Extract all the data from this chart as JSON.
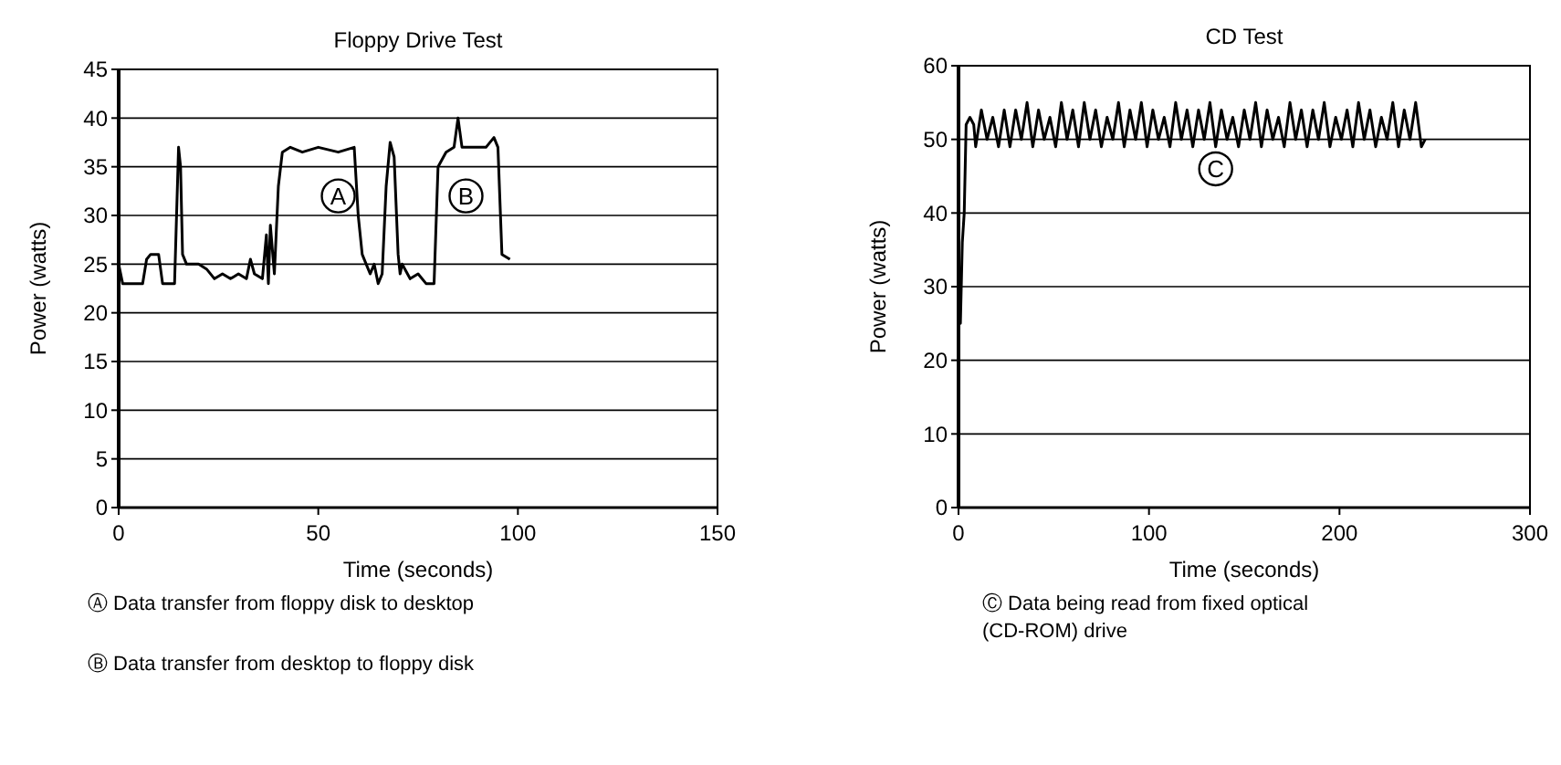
{
  "chart_data": [
    {
      "type": "line",
      "title": "Floppy Drive Test",
      "xlabel": "Time (seconds)",
      "ylabel": "Power (watts)",
      "xlim": [
        0,
        150
      ],
      "xticks": [
        0,
        50,
        100,
        150
      ],
      "ylim": [
        0,
        45
      ],
      "yticks": [
        0,
        5,
        10,
        15,
        20,
        25,
        30,
        35,
        40,
        45
      ],
      "grid": "y",
      "marker": "none",
      "line_style": "solid",
      "series": [
        {
          "color": "#000000",
          "x": [
            0,
            1,
            2,
            6,
            7,
            8,
            10,
            11,
            14,
            15,
            15.5,
            16,
            17,
            20,
            22,
            24,
            26,
            28,
            30,
            32,
            33,
            34,
            36,
            37,
            37.5,
            38,
            39,
            40,
            41,
            43,
            46,
            50,
            55,
            59,
            60,
            61,
            62,
            63,
            64,
            65,
            66,
            67,
            68,
            69,
            70,
            70.5,
            71,
            73,
            75,
            77,
            79,
            80,
            82,
            84,
            85,
            86,
            88,
            92,
            94,
            95,
            96,
            98
          ],
          "values": [
            25,
            23,
            23,
            23,
            25.5,
            26,
            26,
            23,
            23,
            37,
            35,
            26,
            25,
            25,
            24.5,
            23.5,
            24,
            23.5,
            24,
            23.5,
            25.5,
            24,
            23.5,
            28,
            23,
            29,
            24,
            33,
            36.5,
            37,
            36.5,
            37,
            36.5,
            37,
            30,
            26,
            25,
            24,
            25,
            23,
            24,
            33,
            37.5,
            36,
            26,
            24,
            25,
            23.5,
            24,
            23,
            23,
            35,
            36.5,
            37,
            40,
            37,
            37,
            37,
            38,
            37,
            26,
            25.5
          ]
        }
      ],
      "annotations": [
        {
          "text": "A",
          "x": 55,
          "y": 32
        },
        {
          "text": "B",
          "x": 87,
          "y": 32
        },
        "Ⓐ Data transfer from floppy disk to desktop",
        "Ⓑ Data transfer from desktop to floppy disk"
      ]
    },
    {
      "type": "line",
      "title": "CD Test",
      "xlabel": "Time (seconds)",
      "ylabel": "Power (watts)",
      "xlim": [
        0,
        300
      ],
      "xticks": [
        0,
        100,
        200,
        300
      ],
      "ylim": [
        0,
        60
      ],
      "yticks": [
        0,
        10,
        20,
        30,
        40,
        50,
        60
      ],
      "grid": "y",
      "marker": "none",
      "line_style": "solid",
      "series": [
        {
          "color": "#000000",
          "x": [
            0,
            1,
            2,
            3,
            4,
            6,
            8,
            9,
            12,
            15,
            18,
            21,
            24,
            27,
            30,
            33,
            36,
            39,
            42,
            45,
            48,
            51,
            54,
            57,
            60,
            63,
            66,
            69,
            72,
            75,
            78,
            81,
            84,
            87,
            90,
            93,
            96,
            99,
            102,
            105,
            108,
            111,
            114,
            117,
            120,
            123,
            126,
            129,
            132,
            135,
            138,
            141,
            144,
            147,
            150,
            153,
            156,
            159,
            162,
            165,
            168,
            171,
            174,
            177,
            180,
            183,
            186,
            189,
            192,
            195,
            198,
            201,
            204,
            207,
            210,
            213,
            216,
            219,
            222,
            225,
            228,
            231,
            234,
            237,
            240,
            243,
            245
          ],
          "values": [
            25,
            25,
            36,
            40,
            52,
            53,
            52,
            49,
            54,
            50,
            53,
            49,
            54,
            49,
            54,
            50,
            55,
            49,
            54,
            50,
            53,
            49,
            55,
            50,
            54,
            49,
            55,
            50,
            54,
            49,
            53,
            50,
            55,
            49,
            54,
            50,
            55,
            49,
            54,
            50,
            53,
            49,
            55,
            50,
            54,
            49,
            54,
            50,
            55,
            49,
            54,
            50,
            53,
            49,
            54,
            50,
            55,
            49,
            54,
            50,
            53,
            49,
            55,
            50,
            54,
            49,
            54,
            50,
            55,
            49,
            53,
            50,
            54,
            49,
            55,
            50,
            54,
            49,
            53,
            50,
            55,
            49,
            54,
            50,
            55,
            49,
            50
          ]
        }
      ],
      "annotations": [
        {
          "text": "C",
          "x": 135,
          "y": 46
        },
        "Ⓒ Data being read from fixed optical (CD-ROM) drive"
      ]
    }
  ]
}
